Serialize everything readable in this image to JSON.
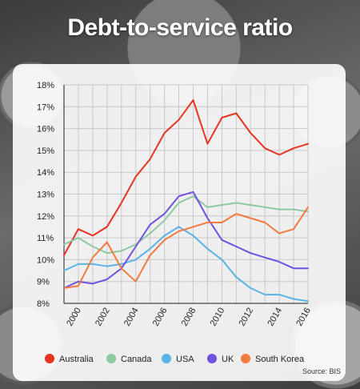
{
  "title": "Debt-to-service ratio",
  "source": "Source: BIS",
  "chart_data": {
    "type": "line",
    "title": "Debt-to-service ratio",
    "x": [
      1999,
      2000,
      2001,
      2002,
      2003,
      2004,
      2005,
      2006,
      2007,
      2008,
      2009,
      2010,
      2011,
      2012,
      2013,
      2014,
      2015,
      2016
    ],
    "xlim": [
      1999,
      2016
    ],
    "ylim": [
      8,
      18
    ],
    "y_ticks": [
      "8%",
      "9%",
      "10%",
      "11%",
      "12%",
      "13%",
      "14%",
      "15%",
      "16%",
      "17%",
      "18%"
    ],
    "x_ticks": [
      "2000",
      "2002",
      "2004",
      "2006",
      "2008",
      "2010",
      "2012",
      "2014",
      "2016"
    ],
    "grid": true,
    "legend_position": "bottom",
    "series": [
      {
        "name": "Australia",
        "color": "#e63322",
        "values": [
          10.2,
          11.4,
          11.1,
          11.5,
          12.6,
          13.8,
          14.6,
          15.8,
          16.4,
          17.3,
          15.3,
          16.5,
          16.7,
          15.8,
          15.1,
          14.8,
          15.1,
          15.3
        ]
      },
      {
        "name": "Canada",
        "color": "#8fc9a0",
        "values": [
          10.7,
          11.0,
          10.6,
          10.3,
          10.4,
          10.7,
          11.2,
          11.8,
          12.6,
          12.9,
          12.4,
          12.5,
          12.6,
          12.5,
          12.4,
          12.3,
          12.3,
          12.2
        ]
      },
      {
        "name": "USA",
        "color": "#5ab4e6",
        "values": [
          9.5,
          9.8,
          9.8,
          9.7,
          9.8,
          10.0,
          10.5,
          11.1,
          11.5,
          11.1,
          10.5,
          10.0,
          9.2,
          8.7,
          8.4,
          8.4,
          8.2,
          8.1
        ]
      },
      {
        "name": "UK",
        "color": "#6f52e0",
        "values": [
          8.7,
          9.0,
          8.9,
          9.1,
          9.6,
          10.6,
          11.6,
          12.1,
          12.9,
          13.1,
          11.9,
          10.9,
          10.6,
          10.3,
          10.1,
          9.9,
          9.6,
          9.6
        ]
      },
      {
        "name": "South Korea",
        "color": "#f27a3f",
        "values": [
          8.7,
          8.8,
          10.1,
          10.8,
          9.6,
          9.0,
          10.2,
          10.9,
          11.3,
          11.5,
          11.7,
          11.7,
          12.1,
          11.9,
          11.7,
          11.2,
          11.4,
          12.4
        ]
      }
    ]
  }
}
